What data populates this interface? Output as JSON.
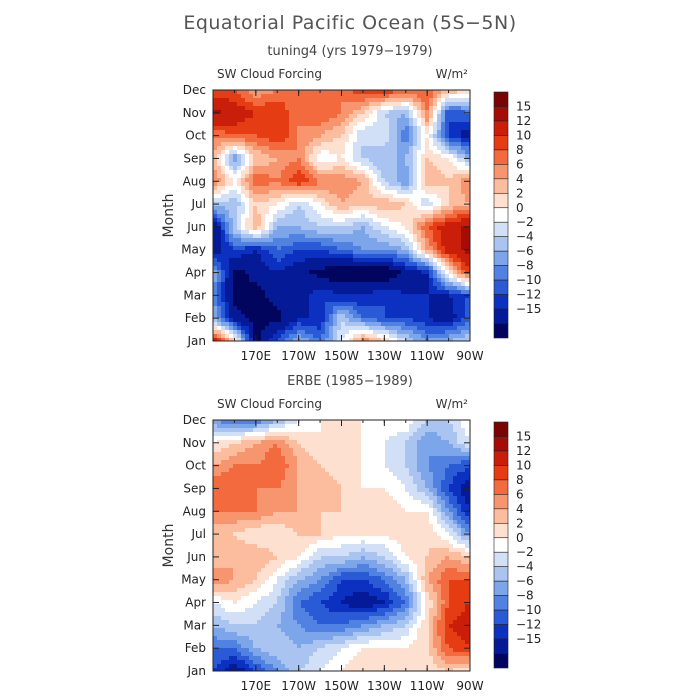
{
  "title": "Equatorial Pacific Ocean (5S−5N)",
  "chart_data": [
    {
      "type": "heatmap",
      "subtitle": "tuning4 (yrs 1979−1979)",
      "field_label": "SW Cloud Forcing",
      "units": "W/m²",
      "ylabel": "Month",
      "y_ticks": [
        "Jan",
        "Feb",
        "Mar",
        "Apr",
        "May",
        "Jun",
        "Jul",
        "Aug",
        "Sep",
        "Oct",
        "Nov",
        "Dec"
      ],
      "x_ticks": [
        "170E",
        "170W",
        "150W",
        "130W",
        "110W",
        "90W"
      ],
      "x_tick_lon": [
        170,
        190,
        210,
        230,
        250,
        270
      ],
      "xlim": [
        150,
        270
      ],
      "x": [
        150,
        160,
        170,
        180,
        190,
        200,
        210,
        220,
        230,
        240,
        250,
        260,
        270
      ],
      "grid": [
        [
          14,
          4,
          -16,
          -10,
          -4,
          -8,
          0,
          8,
          4,
          -2,
          -6,
          -4,
          -2
        ],
        [
          -4,
          -14,
          -16,
          -16,
          -12,
          -12,
          -2,
          -8,
          -10,
          -10,
          -12,
          -14,
          -8
        ],
        [
          -6,
          -16,
          -16,
          -14,
          -14,
          -10,
          -12,
          -12,
          -10,
          -12,
          -12,
          -12,
          -10
        ],
        [
          -4,
          -16,
          -14,
          -12,
          -14,
          -16,
          -18,
          -18,
          -18,
          -14,
          -12,
          2,
          12
        ],
        [
          -14,
          -10,
          -12,
          -8,
          -10,
          -10,
          -8,
          -6,
          -6,
          -4,
          6,
          14,
          16
        ],
        [
          -16,
          -2,
          6,
          -4,
          -4,
          -2,
          -2,
          -4,
          0,
          2,
          10,
          14,
          16
        ],
        [
          -2,
          -4,
          4,
          2,
          -2,
          2,
          6,
          4,
          6,
          4,
          -2,
          4,
          6
        ],
        [
          8,
          2,
          10,
          8,
          12,
          8,
          8,
          6,
          -2,
          -6,
          6,
          4,
          8
        ],
        [
          6,
          -6,
          4,
          6,
          8,
          0,
          2,
          -2,
          -4,
          -4,
          4,
          2,
          -4
        ],
        [
          8,
          10,
          10,
          12,
          8,
          6,
          4,
          -2,
          0,
          -8,
          2,
          -10,
          -14
        ],
        [
          16,
          14,
          12,
          12,
          8,
          10,
          8,
          4,
          -2,
          -4,
          8,
          -10,
          -8
        ],
        [
          10,
          10,
          6,
          8,
          10,
          10,
          8,
          12,
          12,
          10,
          10,
          6,
          4
        ]
      ],
      "colorbar": {
        "labels": [
          "15",
          "12",
          "10",
          "8",
          "6",
          "4",
          "2",
          "0",
          "−2",
          "−4",
          "−6",
          "−8",
          "−10",
          "−12",
          "−15"
        ],
        "colors": [
          "#7a0403",
          "#a60c06",
          "#c81e0a",
          "#e53c14",
          "#f26a3e",
          "#f7956e",
          "#fbbd9e",
          "#fde0d0",
          "#ffffff",
          "#d2e0f7",
          "#a9c4f0",
          "#7da5ea",
          "#5182e1",
          "#2a5ad6",
          "#0c30c0",
          "#041a96",
          "#02055e"
        ],
        "levels": [
          -15,
          -12,
          -10,
          -8,
          -6,
          -4,
          -2,
          0,
          2,
          4,
          6,
          8,
          10,
          12,
          15
        ]
      }
    },
    {
      "type": "heatmap",
      "subtitle": "ERBE (1985−1989)",
      "field_label": "SW Cloud Forcing",
      "units": "W/m²",
      "ylabel": "Month",
      "y_ticks": [
        "Jan",
        "Feb",
        "Mar",
        "Apr",
        "May",
        "Jun",
        "Jul",
        "Aug",
        "Sep",
        "Oct",
        "Nov",
        "Dec"
      ],
      "x_ticks": [
        "170E",
        "170W",
        "150W",
        "130W",
        "110W",
        "90W"
      ],
      "x_tick_lon": [
        170,
        190,
        210,
        230,
        250,
        270
      ],
      "xlim": [
        150,
        270
      ],
      "x": [
        150,
        160,
        170,
        180,
        190,
        200,
        210,
        220,
        230,
        240,
        250,
        260,
        270
      ],
      "grid": [
        [
          -10,
          -14,
          -10,
          -6,
          -2,
          0,
          2,
          4,
          4,
          2,
          2,
          4,
          2
        ],
        [
          -8,
          -8,
          -4,
          -2,
          -4,
          -2,
          0,
          2,
          2,
          2,
          4,
          10,
          12
        ],
        [
          -4,
          -2,
          -2,
          -4,
          -6,
          -8,
          -8,
          -6,
          -4,
          -2,
          4,
          12,
          14
        ],
        [
          0,
          2,
          0,
          -2,
          -8,
          -10,
          -12,
          -14,
          -12,
          -8,
          2,
          10,
          12
        ],
        [
          8,
          6,
          4,
          0,
          -4,
          -6,
          -10,
          -10,
          -8,
          -4,
          6,
          10,
          10
        ],
        [
          4,
          6,
          6,
          4,
          2,
          -2,
          -2,
          -4,
          -2,
          2,
          4,
          6,
          4
        ],
        [
          4,
          4,
          2,
          2,
          4,
          4,
          2,
          2,
          2,
          4,
          4,
          0,
          -6
        ],
        [
          8,
          8,
          8,
          6,
          6,
          4,
          4,
          4,
          4,
          2,
          2,
          -6,
          -12
        ],
        [
          10,
          10,
          8,
          8,
          6,
          6,
          4,
          2,
          2,
          0,
          -4,
          -10,
          -14
        ],
        [
          6,
          8,
          8,
          10,
          6,
          4,
          2,
          2,
          0,
          -2,
          -6,
          -8,
          -10
        ],
        [
          2,
          4,
          6,
          8,
          4,
          2,
          2,
          2,
          0,
          -2,
          -6,
          -4,
          0
        ],
        [
          -6,
          -8,
          -8,
          -4,
          0,
          2,
          2,
          2,
          2,
          2,
          -2,
          -2,
          2
        ]
      ],
      "colorbar": {
        "labels": [
          "15",
          "12",
          "10",
          "8",
          "6",
          "4",
          "2",
          "0",
          "−2",
          "−4",
          "−6",
          "−8",
          "−10",
          "−12",
          "−15"
        ],
        "colors": [
          "#7a0403",
          "#a60c06",
          "#c81e0a",
          "#e53c14",
          "#f26a3e",
          "#f7956e",
          "#fbbd9e",
          "#fde0d0",
          "#ffffff",
          "#d2e0f7",
          "#a9c4f0",
          "#7da5ea",
          "#5182e1",
          "#2a5ad6",
          "#0c30c0",
          "#041a96",
          "#02055e"
        ],
        "levels": [
          -15,
          -12,
          -10,
          -8,
          -6,
          -4,
          -2,
          0,
          2,
          4,
          6,
          8,
          10,
          12,
          15
        ]
      }
    }
  ]
}
